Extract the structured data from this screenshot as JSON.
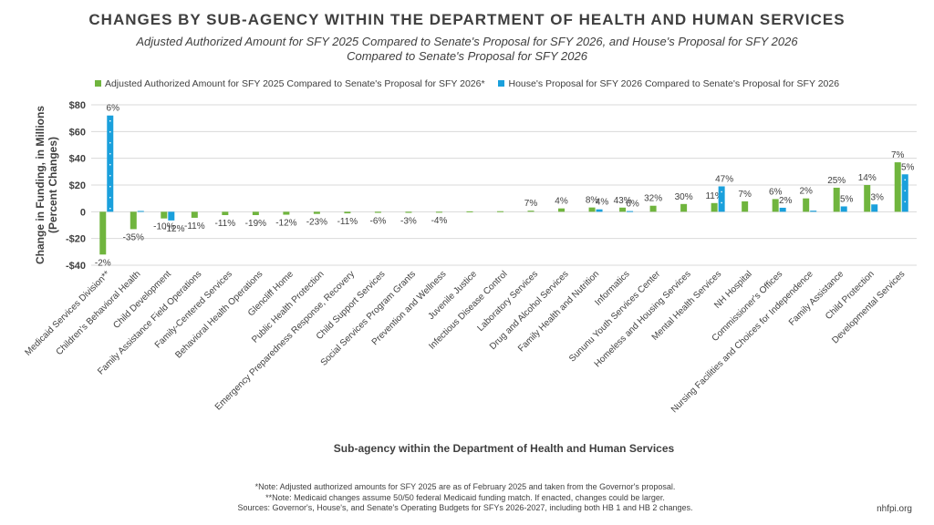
{
  "title": "CHANGES BY SUB-AGENCY WITHIN THE DEPARTMENT OF HEALTH AND HUMAN SERVICES",
  "subtitle_line1": "Adjusted Authorized Amount for SFY 2025 Compared to Senate's Proposal for  SFY 2026, and House's Proposal for SFY 2026",
  "subtitle_line2": "Compared to Senate's Proposal for SFY 2026",
  "notes": {
    "line1": "*Note: Adjusted authorized amounts for SFY 2025 are as of February 2025 and taken from the Governor's proposal.",
    "line2": "**Note: Medicaid changes assume 50/50 federal Medicaid funding match. If enacted, changes could be larger.",
    "line3": "Sources: Governor's, House's, and Senate's Operating Budgets for SFYs 2026-2027, including both HB 1 and HB 2 changes."
  },
  "site": "nhfpi.org",
  "colors": {
    "green": "#70b53e",
    "blue": "#1aa0dc",
    "grid": "#d9d9d9",
    "text": "#404040"
  },
  "chart_data": {
    "type": "bar",
    "xlabel": "Sub-agency within the Department of Health and Human Services",
    "ylabel": "Change in Funding, in Millions (Percent Changes)",
    "ylim": [
      -40,
      80
    ],
    "yticks": [
      -40,
      -20,
      0,
      20,
      40,
      60,
      80
    ],
    "ytick_labels": [
      "-$40",
      "-$20",
      "0",
      "$20",
      "$40",
      "$60",
      "$80"
    ],
    "grid": true,
    "legend_position": "top",
    "categories": [
      "Medicaid Services Division**",
      "Children's Behavioral Health",
      "Child Development",
      "Family Assistance Field Operations",
      "Family-Centered Services",
      "Behavioral Health Operations",
      "Glencliff Home",
      "Public Health Protection",
      "Emergency Preparedness Response, Recovery",
      "Child Support Services",
      "Social Services Program Grants",
      "Prevention and Wellness",
      "Juvenile Justice",
      "Infectious Disease Control",
      "Laboratory Services",
      "Drug and Alcohol Services",
      "Family Health and Nutrition",
      "Informatics",
      "Sununu Youth Services Center",
      "Homeless and Housing Services",
      "Mental Health Services",
      "NH Hospital",
      "Commissioner's Offices",
      "Nursing Facilities and Choices for Independence",
      "Family Assistance",
      "Child Protection",
      "Developmental Services"
    ],
    "series": [
      {
        "name": "Adjusted Authorized Amount for SFY 2025 Compared to Senate's Proposal for SFY 2026*",
        "color": "#70b53e",
        "values": [
          -32,
          -13,
          -5,
          -4.5,
          -2.5,
          -2.5,
          -2.2,
          -1.6,
          -1.2,
          -0.8,
          -0.8,
          -0.5,
          0.3,
          0.4,
          0.8,
          2.5,
          3.2,
          3.1,
          4.5,
          5.8,
          6.5,
          7.8,
          9.5,
          10,
          18,
          20,
          37
        ],
        "labels": [
          "-2%",
          "-35%",
          "-10%",
          "-11%",
          "-11%",
          "-19%",
          "-12%",
          "-23%",
          "-11%",
          "-6%",
          "-3%",
          "-4%",
          "",
          "",
          "7%",
          "4%",
          "8%",
          "43%",
          "32%",
          "30%",
          "11%",
          "7%",
          "6%",
          "2%",
          "25%",
          "14%",
          "7%"
        ]
      },
      {
        "name": "House's Proposal for SFY 2026 Compared to Senate's Proposal for SFY 2026",
        "color": "#1aa0dc",
        "values": [
          72,
          0.6,
          -6.5,
          0,
          0,
          0,
          0,
          0,
          0,
          0,
          0,
          0,
          0,
          0,
          0,
          0,
          1.8,
          0.5,
          0,
          0,
          19,
          0,
          3,
          0.8,
          4,
          5.5,
          28
        ],
        "labels": [
          "6%",
          "",
          "-12%",
          "",
          "",
          "",
          "",
          "",
          "",
          "",
          "",
          "",
          "",
          "",
          "",
          "",
          "4%",
          "6%",
          "",
          "",
          "47%",
          "",
          "2%",
          "",
          "5%",
          "3%",
          "5%"
        ]
      }
    ]
  }
}
